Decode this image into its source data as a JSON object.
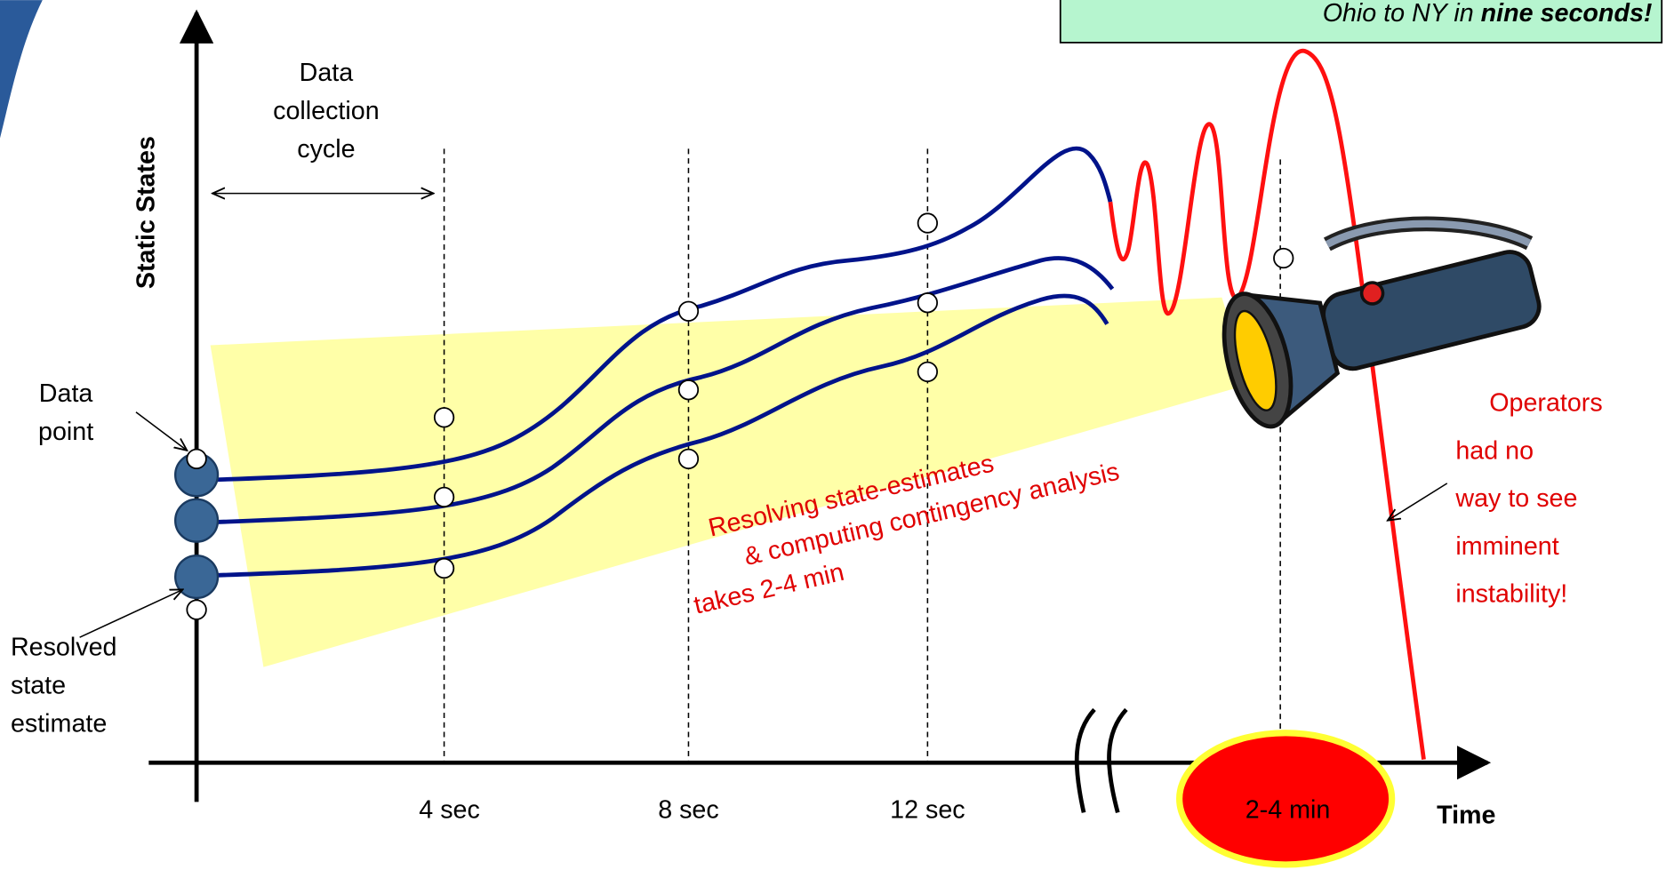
{
  "callout": {
    "text": "Ohio to NY in",
    "emphasis": "nine seconds!"
  },
  "axis": {
    "y_label": "Static States",
    "x_label": "Time",
    "ticks": [
      "4 sec",
      "8 sec",
      "12 sec",
      "2-4 min"
    ]
  },
  "annotations": {
    "collection_cycle": [
      "Data",
      "collection",
      "cycle"
    ],
    "data_point": [
      "Data",
      "point"
    ],
    "resolved_estimate": [
      "Resolved",
      "state",
      "estimate"
    ],
    "processing": [
      "Resolving state-estimates",
      "& computing contingency analysis",
      "takes 2-4 min"
    ],
    "operators": [
      "Operators",
      "had no",
      "way to see",
      "imminent",
      "instability!"
    ]
  }
}
